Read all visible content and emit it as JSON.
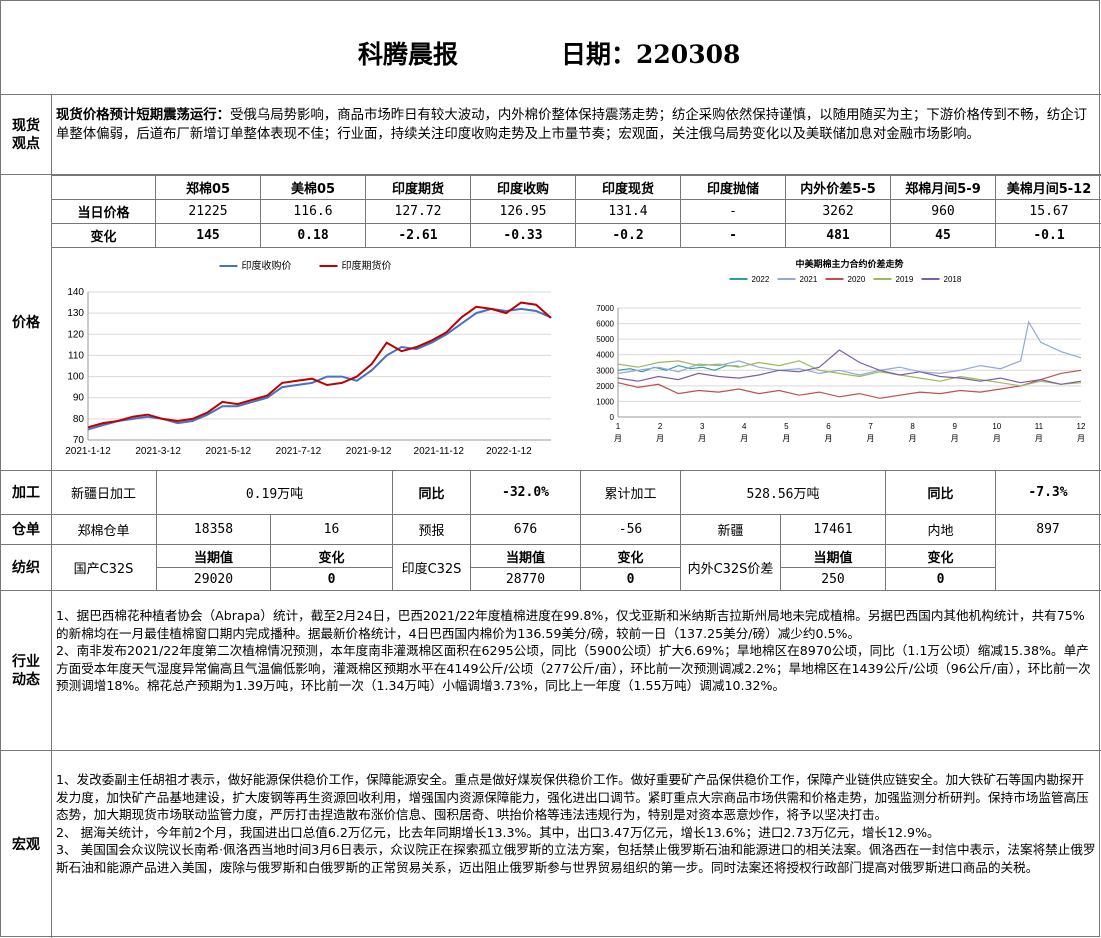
{
  "header": {
    "title": "科腾晨报",
    "date_label": "日期：",
    "date": "220308"
  },
  "labels": {
    "spot": [
      "现货",
      "观点"
    ],
    "price": "价格",
    "process": "加工",
    "warehouse": "仓单",
    "textile": "纺织",
    "industry": [
      "行业",
      "动态"
    ],
    "macro": "宏观"
  },
  "spot_view": {
    "lead": "现货价格预计短期震荡运行：",
    "text": "受俄乌局势影响，商品市场昨日有较大波动，内外棉价整体保持震荡走势；纺企采购依然保持谨慎，以随用随买为主；下游价格传到不畅，纺企订单整体偏弱，后道布厂新增订单整体表现不佳；行业面，持续关注印度收购走势及上市量节奏；宏观面，关注俄乌局势变化以及美联储加息对金融市场影响。"
  },
  "price_table": {
    "headers": [
      "郑棉05",
      "美棉05",
      "印度期货",
      "印度收购",
      "印度现货",
      "印度抛储",
      "内外价差5-5",
      "郑棉月间5-9",
      "美棉月间5-12"
    ],
    "row_labels": [
      "当日价格",
      "变化"
    ],
    "today": [
      "21225",
      "116.6",
      "127.72",
      "126.95",
      "131.4",
      "-",
      "3262",
      "960",
      "15.67"
    ],
    "change": [
      "145",
      "0.18",
      "-2.61",
      "-0.33",
      "-0.2",
      "-",
      "481",
      "45",
      "-0.1"
    ]
  },
  "chart_data": [
    {
      "type": "line",
      "title": "",
      "legend": [
        "印度收购价",
        "印度期货价"
      ],
      "legend_position": "top",
      "colors": [
        "#4472C4",
        "#C00000"
      ],
      "y_ticks": [
        "140",
        "130",
        "120",
        "110",
        "100",
        "90",
        "80",
        "70"
      ],
      "ylim": [
        70,
        140
      ],
      "x_ticks": [
        "2021-1-12",
        "2021-3-12",
        "2021-5-12",
        "2021-7-12",
        "2021-9-12",
        "2021-11-12",
        "2022-1-12"
      ],
      "grid": true,
      "series": [
        {
          "name": "印度收购价",
          "x": [
            0,
            2,
            4,
            6,
            8,
            10,
            12,
            14,
            16,
            18,
            20,
            22,
            24,
            26,
            28,
            30,
            32,
            34,
            36,
            38,
            40,
            42,
            44,
            46,
            48,
            50,
            52,
            54,
            56,
            58,
            60,
            62
          ],
          "values": [
            75,
            77,
            79,
            80,
            81,
            80,
            78,
            79,
            82,
            86,
            86,
            88,
            90,
            95,
            96,
            97,
            100,
            100,
            98,
            103,
            110,
            114,
            113,
            116,
            120,
            125,
            130,
            132,
            131,
            132,
            131,
            128
          ]
        },
        {
          "name": "印度期货价",
          "x": [
            0,
            2,
            4,
            6,
            8,
            10,
            12,
            14,
            16,
            18,
            20,
            22,
            24,
            26,
            28,
            30,
            32,
            34,
            36,
            38,
            40,
            42,
            44,
            46,
            48,
            50,
            52,
            54,
            56,
            58,
            60,
            62
          ],
          "values": [
            76,
            78,
            79,
            81,
            82,
            80,
            79,
            80,
            83,
            88,
            87,
            89,
            91,
            97,
            98,
            99,
            96,
            97,
            100,
            106,
            116,
            112,
            114,
            117,
            121,
            128,
            133,
            132,
            130,
            135,
            134,
            127.7
          ]
        }
      ]
    },
    {
      "type": "line",
      "title": "中美期棉主力合约价差走势",
      "legend": [
        "2022",
        "2021",
        "2020",
        "2019",
        "2018"
      ],
      "legend_position": "top",
      "colors": [
        "#2E9CA6",
        "#8FA9D9",
        "#C0504D",
        "#9BBB59",
        "#7B5EA7"
      ],
      "y_ticks": [
        "7000",
        "6000",
        "5000",
        "4000",
        "3000",
        "2000",
        "1000",
        "0"
      ],
      "ylim": [
        0,
        7000
      ],
      "x_ticks": [
        "1月",
        "2月",
        "3月",
        "4月",
        "5月",
        "6月",
        "7月",
        "8月",
        "9月",
        "10月",
        "11月",
        "12月"
      ],
      "grid": true,
      "series": [
        {
          "name": "2022",
          "x": [
            0,
            0.3,
            0.6,
            0.9,
            1.2,
            1.5,
            1.8,
            2.1,
            2.4,
            2.7,
            3.0
          ],
          "values": [
            3000,
            3100,
            2900,
            3200,
            3000,
            3300,
            3100,
            3200,
            3000,
            3300,
            3262
          ]
        },
        {
          "name": "2021",
          "x": [
            0,
            0.5,
            1,
            1.5,
            2,
            2.5,
            3,
            3.5,
            4,
            4.5,
            5,
            5.5,
            6,
            6.5,
            7,
            7.5,
            8,
            8.5,
            9,
            9.5,
            10,
            10.2,
            10.5,
            11,
            11.5
          ],
          "values": [
            2800,
            3000,
            3200,
            2900,
            3400,
            3300,
            3600,
            3200,
            3000,
            3100,
            2800,
            3000,
            2700,
            3000,
            3200,
            2900,
            2800,
            3000,
            3300,
            3100,
            3600,
            6100,
            4800,
            4200,
            3800
          ]
        },
        {
          "name": "2020",
          "x": [
            0,
            0.5,
            1,
            1.5,
            2,
            2.5,
            3,
            3.5,
            4,
            4.5,
            5,
            5.5,
            6,
            6.5,
            7,
            7.5,
            8,
            8.5,
            9,
            9.5,
            10,
            10.5,
            11,
            11.5
          ],
          "values": [
            2200,
            1900,
            2100,
            1500,
            1700,
            1600,
            1800,
            1500,
            1700,
            1400,
            1600,
            1300,
            1500,
            1200,
            1400,
            1600,
            1500,
            1700,
            1600,
            1800,
            2000,
            2400,
            2800,
            3000
          ]
        },
        {
          "name": "2019",
          "x": [
            0,
            0.5,
            1,
            1.5,
            2,
            2.5,
            3,
            3.5,
            4,
            4.5,
            5,
            5.5,
            6,
            6.5,
            7,
            7.5,
            8,
            8.5,
            9,
            9.5,
            10,
            10.5,
            11,
            11.5
          ],
          "values": [
            3400,
            3200,
            3500,
            3600,
            3300,
            3400,
            3200,
            3500,
            3300,
            3600,
            3000,
            2800,
            2600,
            2900,
            2700,
            2500,
            2300,
            2600,
            2400,
            2200,
            2000,
            2300,
            2100,
            2200
          ]
        },
        {
          "name": "2018",
          "x": [
            0,
            0.5,
            1,
            1.5,
            2,
            2.5,
            3,
            3.5,
            4,
            4.5,
            5,
            5.5,
            6,
            6.5,
            7,
            7.5,
            8,
            8.5,
            9,
            9.5,
            10,
            10.5,
            11,
            11.5
          ],
          "values": [
            2500,
            2300,
            2600,
            2400,
            2800,
            2600,
            2500,
            2700,
            3000,
            2900,
            3200,
            4300,
            3500,
            3000,
            2700,
            2900,
            2600,
            2500,
            2300,
            2500,
            2200,
            2400,
            2100,
            2300
          ]
        }
      ]
    }
  ],
  "processing": {
    "xj_label": "新疆日加工",
    "xj_value": "0.19万吨",
    "yoy_label": "同比",
    "yoy_value": "-32.0%",
    "cum_label": "累计加工",
    "cum_value": "528.56万吨",
    "yoy2_label": "同比",
    "yoy2_value": "-7.3%"
  },
  "warehouse_row": {
    "c1": "郑棉仓单",
    "c2": "18358",
    "c3": "16",
    "c4": "预报",
    "c5": "676",
    "c6": "-56",
    "c7": "新疆",
    "c8": "17461",
    "c9": "内地",
    "c10": "897"
  },
  "textile": {
    "g1_label": "国产C32S",
    "g2_label": "印度C32S",
    "g3_label": "内外C32S价差",
    "cur_label": "当期值",
    "chg_label": "变化",
    "g1_cur": "29020",
    "g1_chg": "0",
    "g2_cur": "28770",
    "g2_chg": "0",
    "g3_cur": "250",
    "g3_chg": "0"
  },
  "industry_news": [
    "1、据巴西棉花种植者协会（Abrapa）统计，截至2月24日，巴西2021/22年度植棉进度在99.8%，仅戈亚斯和米纳斯吉拉斯州局地未完成植棉。另据巴西国内其他机构统计，共有75%的新棉均在一月最佳植棉窗口期内完成播种。据最新价格统计，4日巴西国内棉价为136.59美分/磅，较前一日（137.25美分/磅）减少约0.5%。",
    "2、南非发布2021/22年度第二次植棉情况预测，本年度南非灌溉棉区面积在6295公顷，同比（5900公顷）扩大6.69%；旱地棉区在8970公顷，同比（1.1万公顷）缩减15.38%。单产方面受本年度天气湿度异常偏高且气温偏低影响，灌溉棉区预期水平在4149公斤/公顷（277公斤/亩），环比前一次预测调减2.2%；旱地棉区在1439公斤/公顷（96公斤/亩），环比前一次预测调增18%。棉花总产预期为1.39万吨，环比前一次（1.34万吨）小幅调增3.73%，同比上一年度（1.55万吨）调减10.32%。"
  ],
  "macro_news": [
    "1、发改委副主任胡祖才表示，做好能源保供稳价工作，保障能源安全。重点是做好煤炭保供稳价工作。做好重要矿产品保供稳价工作，保障产业链供应链安全。加大铁矿石等国内勘探开发力度，加快矿产品基地建设，扩大废钢等再生资源回收利用，增强国内资源保障能力，强化进出口调节。紧盯重点大宗商品市场供需和价格走势，加强监测分析研判。保持市场监管高压态势，加大期现货市场联动监管力度，严厉打击捏造散布涨价信息、囤积居奇、哄抬价格等违法违规行为，特别是对资本恶意炒作，将予以坚决打击。",
    "2、 据海关统计，今年前2个月，我国进出口总值6.2万亿元，比去年同期增长13.3%。其中，出口3.47万亿元，增长13.6%；进口2.73万亿元，增长12.9%。",
    "3、 美国国会众议院议长南希·佩洛西当地时间3月6日表示，众议院正在探索孤立俄罗斯的立法方案，包括禁止俄罗斯石油和能源进口的相关法案。佩洛西在一封信中表示，法案将禁止俄罗斯石油和能源产品进入美国，废除与俄罗斯和白俄罗斯的正常贸易关系，迈出阻止俄罗斯参与世界贸易组织的第一步。同时法案还将授权行政部门提高对俄罗斯进口商品的关税。"
  ]
}
